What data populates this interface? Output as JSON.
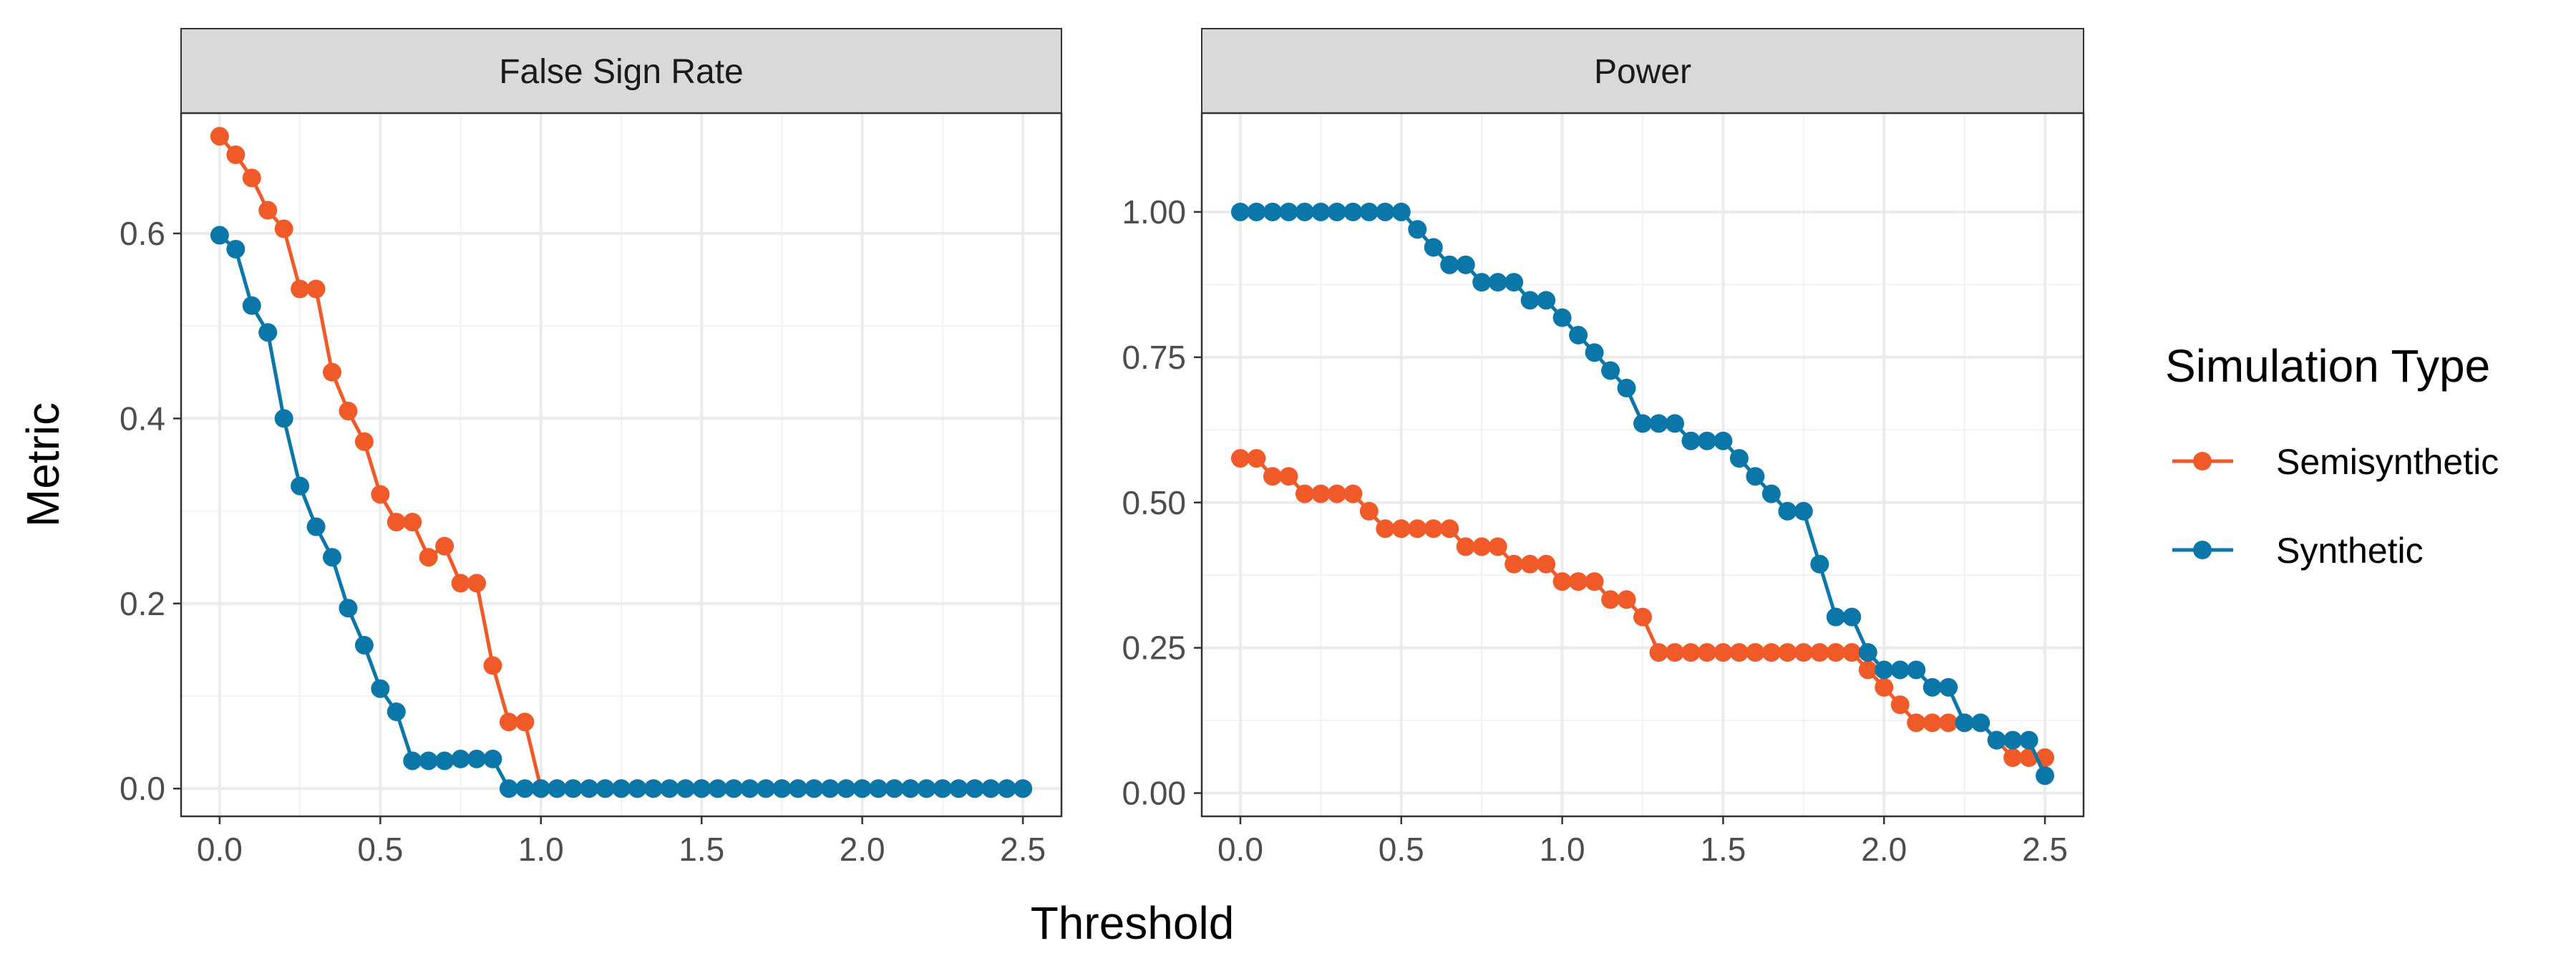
{
  "chart_data": {
    "type": "line",
    "xlabel": "Threshold",
    "ylabel": "Metric",
    "legend_title": "Simulation Type",
    "legend_position": "right",
    "grid": true,
    "series_colors": {
      "Semisynthetic": "#f05a28",
      "Synthetic": "#0a77a8"
    },
    "x": [
      0.0,
      0.05,
      0.1,
      0.15,
      0.2,
      0.25,
      0.3,
      0.35,
      0.4,
      0.45,
      0.5,
      0.55,
      0.6,
      0.65,
      0.7,
      0.75,
      0.8,
      0.85,
      0.9,
      0.95,
      1.0,
      1.05,
      1.1,
      1.15,
      1.2,
      1.25,
      1.3,
      1.35,
      1.4,
      1.45,
      1.5,
      1.55,
      1.6,
      1.65,
      1.7,
      1.75,
      1.8,
      1.85,
      1.9,
      1.95,
      2.0,
      2.05,
      2.1,
      2.15,
      2.2,
      2.25,
      2.3,
      2.35,
      2.4,
      2.45,
      2.5
    ],
    "panels": [
      {
        "title": "False Sign Rate",
        "ylim": [
          -0.03,
          0.73
        ],
        "yticks": [
          0.0,
          0.2,
          0.4,
          0.6
        ],
        "ytick_labels": [
          "0.0",
          "0.2",
          "0.4",
          "0.6"
        ],
        "xlim": [
          -0.12,
          2.62
        ],
        "xticks": [
          0.0,
          0.5,
          1.0,
          1.5,
          2.0,
          2.5
        ],
        "xtick_labels": [
          "0.0",
          "0.5",
          "1.0",
          "1.5",
          "2.0",
          "2.5"
        ],
        "series": [
          {
            "name": "Semisynthetic",
            "values": [
              0.705,
              0.685,
              0.66,
              0.625,
              0.605,
              0.54,
              0.54,
              0.45,
              0.408,
              0.375,
              0.318,
              0.288,
              0.288,
              0.25,
              0.262,
              0.222,
              0.222,
              0.133,
              0.072,
              0.072,
              0.0,
              0.0,
              0.0,
              0.0,
              0.0,
              0.0,
              0.0,
              0.0,
              0.0,
              0.0,
              0.0,
              0.0,
              0.0,
              0.0,
              0.0,
              0.0,
              0.0,
              0.0,
              0.0,
              0.0,
              0.0,
              0.0,
              0.0,
              0.0,
              0.0,
              0.0,
              0.0,
              0.0,
              0.0,
              0.0,
              0.0
            ]
          },
          {
            "name": "Synthetic",
            "values": [
              0.598,
              0.583,
              0.522,
              0.493,
              0.4,
              0.327,
              0.283,
              0.25,
              0.195,
              0.155,
              0.108,
              0.083,
              0.03,
              0.03,
              0.03,
              0.032,
              0.032,
              0.032,
              0.0,
              0.0,
              0.0,
              0.0,
              0.0,
              0.0,
              0.0,
              0.0,
              0.0,
              0.0,
              0.0,
              0.0,
              0.0,
              0.0,
              0.0,
              0.0,
              0.0,
              0.0,
              0.0,
              0.0,
              0.0,
              0.0,
              0.0,
              0.0,
              0.0,
              0.0,
              0.0,
              0.0,
              0.0,
              0.0,
              0.0,
              0.0,
              0.0
            ]
          }
        ]
      },
      {
        "title": "Power",
        "ylim": [
          -0.04,
          1.17
        ],
        "yticks": [
          0.0,
          0.25,
          0.5,
          0.75,
          1.0
        ],
        "ytick_labels": [
          "0.00",
          "0.25",
          "0.50",
          "0.75",
          "1.00"
        ],
        "xlim": [
          -0.12,
          2.62
        ],
        "xticks": [
          0.0,
          0.5,
          1.0,
          1.5,
          2.0,
          2.5
        ],
        "xtick_labels": [
          "0.0",
          "0.5",
          "1.0",
          "1.5",
          "2.0",
          "2.5"
        ],
        "series": [
          {
            "name": "Semisynthetic",
            "values": [
              0.576,
              0.576,
              0.545,
              0.545,
              0.515,
              0.515,
              0.515,
              0.515,
              0.485,
              0.455,
              0.455,
              0.455,
              0.455,
              0.455,
              0.424,
              0.424,
              0.424,
              0.394,
              0.394,
              0.394,
              0.364,
              0.364,
              0.364,
              0.333,
              0.333,
              0.303,
              0.242,
              0.242,
              0.242,
              0.242,
              0.242,
              0.242,
              0.242,
              0.242,
              0.242,
              0.242,
              0.242,
              0.242,
              0.242,
              0.212,
              0.182,
              0.152,
              0.121,
              0.121,
              0.121,
              0.121,
              0.121,
              0.091,
              0.061,
              0.061,
              0.061
            ]
          },
          {
            "name": "Synthetic",
            "values": [
              1.0,
              1.0,
              1.0,
              1.0,
              1.0,
              1.0,
              1.0,
              1.0,
              1.0,
              1.0,
              1.0,
              0.97,
              0.939,
              0.909,
              0.909,
              0.879,
              0.879,
              0.879,
              0.848,
              0.848,
              0.818,
              0.788,
              0.758,
              0.727,
              0.697,
              0.636,
              0.636,
              0.636,
              0.606,
              0.606,
              0.606,
              0.576,
              0.545,
              0.515,
              0.485,
              0.485,
              0.394,
              0.303,
              0.303,
              0.242,
              0.212,
              0.212,
              0.212,
              0.182,
              0.182,
              0.121,
              0.121,
              0.091,
              0.091,
              0.091,
              0.03
            ]
          }
        ]
      }
    ]
  }
}
